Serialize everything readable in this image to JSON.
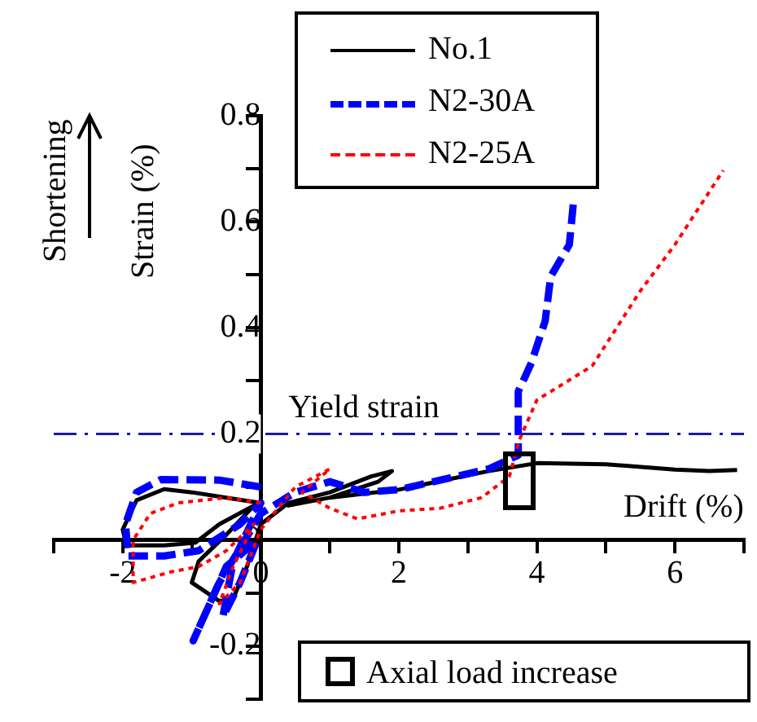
{
  "chart_data": {
    "type": "line",
    "xlabel": "Drift (%)",
    "ylabel": "Strain (%)",
    "xlim": [
      -3,
      7
    ],
    "xticks": [
      {
        "value": -3,
        "label": null
      },
      -2,
      {
        "value": -1,
        "label": null
      },
      0,
      {
        "value": 1,
        "label": null
      },
      2,
      {
        "value": 3,
        "label": null
      },
      4,
      {
        "value": 5,
        "label": null
      },
      6,
      {
        "value": 7,
        "label": null
      }
    ],
    "ylim": [
      -0.3,
      0.8
    ],
    "yticks": [
      {
        "value": -0.3,
        "label": null
      },
      -0.2,
      {
        "value": -0.1,
        "label": null
      },
      0,
      {
        "value": 0.1,
        "label": null
      },
      0.2,
      {
        "value": 0.3,
        "label": null
      },
      0.4,
      {
        "value": 0.5,
        "label": null
      },
      0.6,
      {
        "value": 0.7,
        "label": null
      },
      0.8
    ],
    "grid": false,
    "legend": "top right",
    "marker": "none",
    "series": [
      {
        "name": "No.1",
        "color": "#000000",
        "line_style": "solid",
        "x": [
          0,
          -0.5,
          -1,
          -1.4,
          -1.8,
          -2,
          -1.95,
          -1.4,
          -0.95,
          -0.6,
          -0.1,
          -0.5,
          -0.9,
          -1,
          -0.6,
          -0.4,
          -0.2,
          0,
          0.4,
          1,
          1.6,
          1.9,
          1.7,
          1,
          0.4,
          1,
          2,
          2.7,
          3.3,
          4,
          5,
          6,
          6.5,
          6.9
        ],
        "values": [
          0.07,
          0.08,
          0.09,
          0.096,
          0.075,
          0.02,
          -0.01,
          -0.01,
          -0.005,
          0.03,
          0.065,
          0.01,
          -0.04,
          -0.08,
          -0.115,
          -0.11,
          -0.05,
          0.03,
          0.07,
          0.09,
          0.12,
          0.13,
          0.11,
          0.08,
          0.065,
          0.08,
          0.095,
          0.114,
          0.13,
          0.145,
          0.143,
          0.133,
          0.13,
          0.132
        ]
      },
      {
        "name": "N2-30A",
        "color": "#0000ff",
        "line_style": "dashed",
        "x": [
          0,
          -0.6,
          -1.45,
          -1.8,
          -1.96,
          -1.92,
          -1.4,
          -0.9,
          -0.3,
          0,
          -0.4,
          -0.55,
          -0.3,
          -0.05,
          -0.5,
          -0.98,
          -0.6,
          0,
          0.5,
          1,
          1.5,
          2,
          2.5,
          3.3,
          3.73,
          3.73,
          3.92,
          4.12,
          4.2,
          4.47,
          4.53
        ],
        "values": [
          0.1,
          0.113,
          0.114,
          0.09,
          0.03,
          -0.03,
          -0.03,
          -0.02,
          0.03,
          0.07,
          -0.04,
          -0.145,
          -0.08,
          0,
          -0.05,
          -0.19,
          -0.08,
          0.05,
          0.09,
          0.11,
          0.09,
          0.095,
          0.11,
          0.134,
          0.16,
          0.28,
          0.334,
          0.413,
          0.497,
          0.557,
          0.637
        ]
      },
      {
        "name": "N2-25A",
        "color": "#ff0000",
        "line_style": "dotted",
        "x": [
          0,
          -0.5,
          -1.2,
          -1.6,
          -1.85,
          -1.85,
          -1.3,
          -0.9,
          -0.5,
          -0.1,
          -0.4,
          -0.6,
          -0.3,
          0,
          0.5,
          1,
          0.6,
          1,
          1.4,
          2,
          2.6,
          3.2,
          3.6,
          3.75,
          4,
          4.8,
          5.5,
          6,
          6.7
        ],
        "values": [
          0.07,
          0.08,
          0.07,
          0.05,
          0,
          -0.08,
          -0.06,
          -0.05,
          -0.02,
          0.03,
          -0.05,
          -0.12,
          -0.08,
          0.02,
          0.1,
          0.134,
          0.09,
          0.06,
          0.04,
          0.055,
          0.06,
          0.08,
          0.12,
          0.19,
          0.264,
          0.328,
          0.47,
          0.557,
          0.697
        ]
      }
    ],
    "ref_lines": [
      {
        "axis": "y",
        "value": 0.2,
        "label": "Yield strain",
        "color": "#1a1aa6",
        "line_style": "dashdot"
      }
    ],
    "annotations": [
      "Shortening",
      "Axial load increase"
    ]
  }
}
